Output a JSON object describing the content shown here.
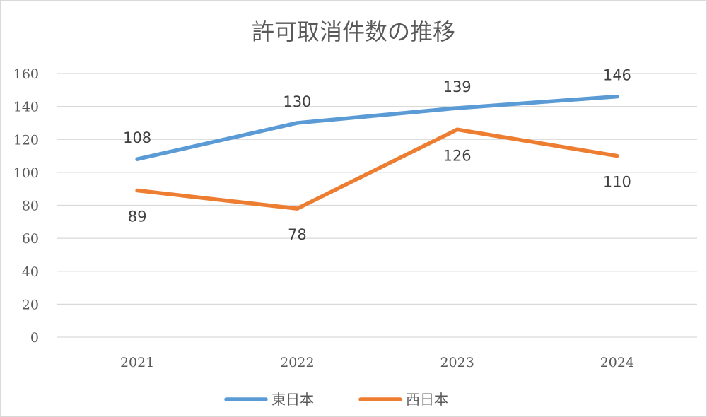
{
  "chart_data": {
    "type": "line",
    "title": "許可取消件数の推移",
    "xlabel": "",
    "ylabel": "",
    "categories": [
      "2021",
      "2022",
      "2023",
      "2024"
    ],
    "ylim": [
      0,
      160
    ],
    "yticks": [
      0,
      20,
      40,
      60,
      80,
      100,
      120,
      140,
      160
    ],
    "grid": true,
    "legend_position": "bottom",
    "series": [
      {
        "name": "東日本",
        "values": [
          108,
          130,
          139,
          146
        ],
        "color": "#5b9bd5",
        "label_position": "above"
      },
      {
        "name": "西日本",
        "values": [
          89,
          78,
          126,
          110
        ],
        "color": "#ed7d31",
        "label_position": "below"
      }
    ]
  }
}
